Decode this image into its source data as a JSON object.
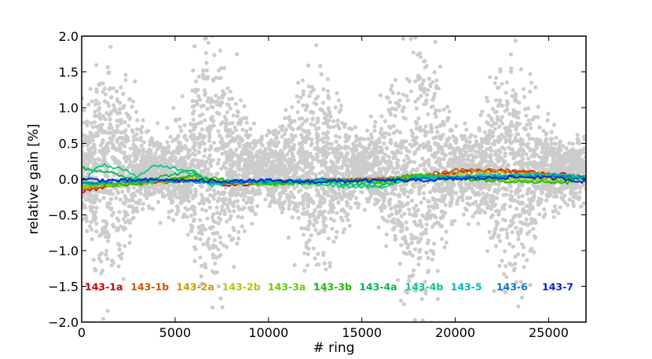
{
  "chart_data": {
    "type": "scatter",
    "title": "",
    "xlabel": "# ring",
    "ylabel": "relative gain [%]",
    "xlim": [
      0,
      27000
    ],
    "ylim": [
      -2.0,
      2.0
    ],
    "x_ticks": [
      0,
      5000,
      10000,
      15000,
      20000,
      25000
    ],
    "x_tick_labels": [
      "0",
      "5000",
      "10000",
      "15000",
      "20000",
      "25000"
    ],
    "y_ticks": [
      2.0,
      1.5,
      1.0,
      0.5,
      0.0,
      -0.5,
      -1.0,
      -1.5,
      -2.0
    ],
    "y_tick_labels": [
      "2.0",
      "1.5",
      "1.0",
      "0.5",
      "0.0",
      "−0.5",
      "−1.0",
      "−1.5",
      "−2.0"
    ],
    "grid": false,
    "scatter_color": "#cccccc",
    "scatter_note": "dense grey point cloud, spread larger near rings ~1500, ~7000, ~12500, ~18000, ~23000",
    "series": [
      {
        "name": "143-1a",
        "color": "#cc0000",
        "x": [
          0,
          2000,
          4000,
          6000,
          8000,
          10000,
          12000,
          14000,
          16000,
          18000,
          20000,
          22000,
          24000,
          26000,
          27000
        ],
        "y": [
          -0.18,
          -0.08,
          -0.04,
          -0.02,
          -0.08,
          -0.05,
          -0.03,
          -0.02,
          -0.02,
          0.03,
          0.1,
          0.12,
          0.1,
          0.06,
          0.02
        ]
      },
      {
        "name": "143-1b",
        "color": "#cc5500",
        "x": [
          0,
          2000,
          4000,
          6000,
          8000,
          10000,
          12000,
          14000,
          16000,
          18000,
          20000,
          22000,
          24000,
          26000,
          27000
        ],
        "y": [
          -0.15,
          -0.06,
          -0.03,
          0.0,
          -0.07,
          -0.04,
          -0.02,
          -0.01,
          0.0,
          0.05,
          0.12,
          0.13,
          0.1,
          0.05,
          0.03
        ]
      },
      {
        "name": "143-2a",
        "color": "#cc9900",
        "x": [
          0,
          2000,
          4000,
          6000,
          8000,
          10000,
          12000,
          14000,
          16000,
          18000,
          20000,
          22000,
          24000,
          26000,
          27000
        ],
        "y": [
          -0.12,
          -0.05,
          -0.02,
          0.02,
          -0.06,
          -0.03,
          -0.02,
          0.0,
          0.0,
          0.04,
          0.08,
          0.1,
          0.08,
          0.04,
          0.02
        ]
      },
      {
        "name": "143-2b",
        "color": "#aacc00",
        "x": [
          0,
          2000,
          4000,
          6000,
          8000,
          10000,
          12000,
          14000,
          16000,
          18000,
          20000,
          22000,
          24000,
          26000,
          27000
        ],
        "y": [
          -0.1,
          -0.07,
          -0.04,
          0.0,
          -0.05,
          -0.06,
          -0.05,
          -0.02,
          -0.03,
          0.02,
          0.05,
          0.04,
          0.02,
          0.0,
          0.01
        ]
      },
      {
        "name": "143-3a",
        "color": "#66cc00",
        "x": [
          0,
          2000,
          4000,
          6000,
          8000,
          10000,
          12000,
          14000,
          16000,
          18000,
          20000,
          22000,
          24000,
          26000,
          27000
        ],
        "y": [
          -0.08,
          -0.1,
          -0.05,
          0.03,
          -0.04,
          -0.08,
          -0.06,
          -0.03,
          -0.05,
          0.06,
          0.02,
          0.0,
          -0.02,
          -0.04,
          0.05
        ]
      },
      {
        "name": "143-3b",
        "color": "#22bb00",
        "x": [
          0,
          2000,
          4000,
          6000,
          8000,
          10000,
          12000,
          14000,
          16000,
          18000,
          20000,
          22000,
          24000,
          26000,
          27000
        ],
        "y": [
          -0.05,
          -0.08,
          -0.03,
          0.05,
          -0.02,
          -0.07,
          -0.05,
          -0.02,
          -0.04,
          0.08,
          0.01,
          -0.02,
          -0.03,
          -0.05,
          0.04
        ]
      },
      {
        "name": "143-4a",
        "color": "#00bb44",
        "x": [
          0,
          1000,
          2000,
          3000,
          4000,
          6000,
          7000,
          8000,
          10000,
          12000,
          14000,
          16000,
          18000,
          20000,
          22000,
          24000,
          26000,
          27000
        ],
        "y": [
          0.15,
          0.12,
          0.05,
          0.0,
          0.02,
          0.12,
          -0.05,
          -0.02,
          -0.05,
          -0.04,
          -0.06,
          -0.1,
          0.02,
          0.0,
          0.02,
          0.04,
          0.03,
          0.02
        ]
      },
      {
        "name": "143-4b",
        "color": "#00cc88",
        "x": [
          0,
          1000,
          2000,
          3000,
          4000,
          5000,
          6000,
          7000,
          8000,
          10000,
          12000,
          14000,
          16000,
          18000,
          20000,
          22000,
          24000,
          26000,
          27000
        ],
        "y": [
          -0.05,
          0.2,
          0.15,
          0.05,
          0.2,
          0.15,
          0.08,
          -0.08,
          -0.02,
          -0.05,
          -0.06,
          -0.1,
          -0.12,
          0.05,
          0.02,
          0.04,
          0.06,
          0.04,
          0.02
        ]
      },
      {
        "name": "143-5",
        "color": "#00bbbb",
        "x": [
          0,
          2000,
          4000,
          6000,
          8000,
          10000,
          12000,
          14000,
          16000,
          18000,
          20000,
          22000,
          24000,
          26000,
          27000
        ],
        "y": [
          -0.08,
          -0.04,
          -0.02,
          -0.04,
          -0.06,
          -0.03,
          -0.02,
          -0.02,
          -0.03,
          0.01,
          0.03,
          0.05,
          0.06,
          0.05,
          0.03
        ]
      },
      {
        "name": "143-6",
        "color": "#0077cc",
        "x": [
          0,
          2000,
          4000,
          6000,
          8000,
          10000,
          12000,
          14000,
          16000,
          18000,
          20000,
          22000,
          24000,
          26000,
          27000
        ],
        "y": [
          -0.06,
          -0.03,
          -0.02,
          -0.03,
          -0.05,
          -0.03,
          -0.02,
          -0.01,
          -0.02,
          0.0,
          0.02,
          0.03,
          0.04,
          0.03,
          0.02
        ]
      },
      {
        "name": "143-7",
        "color": "#0022cc",
        "x": [
          0,
          2000,
          4000,
          6000,
          8000,
          10000,
          12000,
          14000,
          16000,
          18000,
          20000,
          22000,
          24000,
          26000,
          27000
        ],
        "y": [
          0.0,
          -0.02,
          -0.01,
          -0.02,
          -0.03,
          -0.02,
          -0.04,
          -0.03,
          -0.02,
          -0.02,
          0.0,
          0.02,
          0.03,
          0.0,
          -0.04
        ]
      }
    ],
    "legend_position": "lower-center inside plot"
  }
}
